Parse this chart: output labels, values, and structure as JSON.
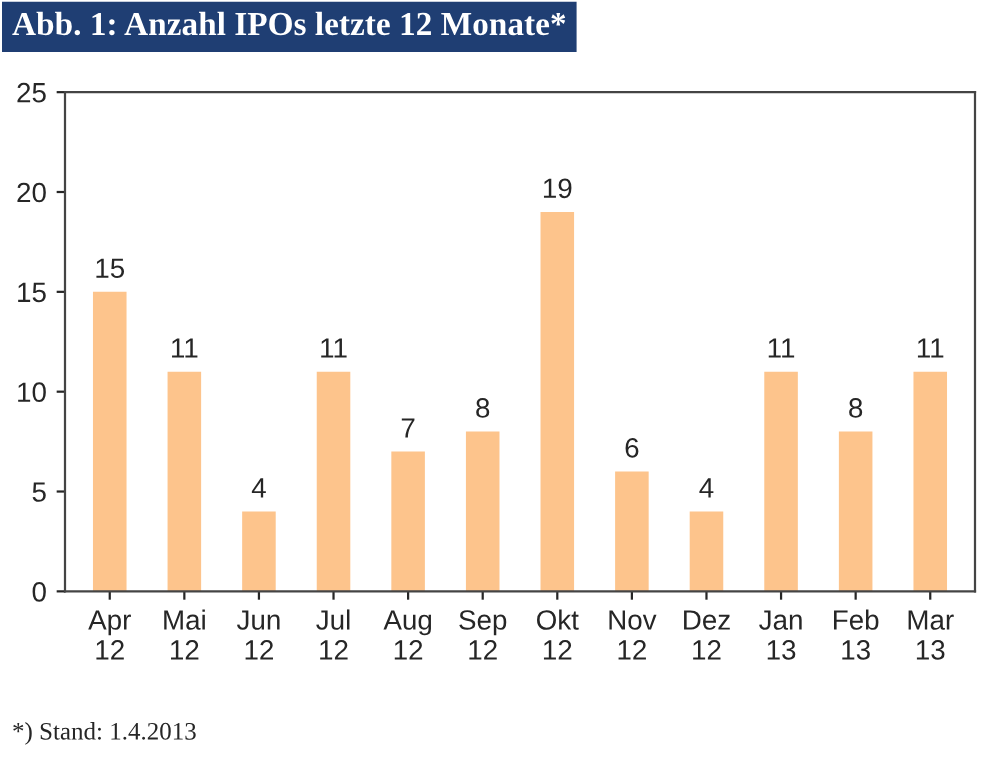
{
  "chart_data": {
    "type": "bar",
    "title": "Abb. 1: Anzahl IPOs letzte 12 Monate*",
    "categories": [
      "Apr\n12",
      "Mai\n12",
      "Jun\n12",
      "Jul\n12",
      "Aug\n12",
      "Sep\n12",
      "Okt\n12",
      "Nov\n12",
      "Dez\n12",
      "Jan\n13",
      "Feb\n13",
      "Mar\n13"
    ],
    "values": [
      15,
      11,
      4,
      11,
      7,
      8,
      19,
      6,
      4,
      11,
      8,
      11
    ],
    "color": "#fdc48c",
    "ylim": [
      0,
      25
    ],
    "yticks": [
      0,
      5,
      10,
      15,
      20,
      25
    ],
    "grid": false,
    "data_labels": true,
    "annotations": [
      "*) Stand: 1.4.2013"
    ]
  }
}
